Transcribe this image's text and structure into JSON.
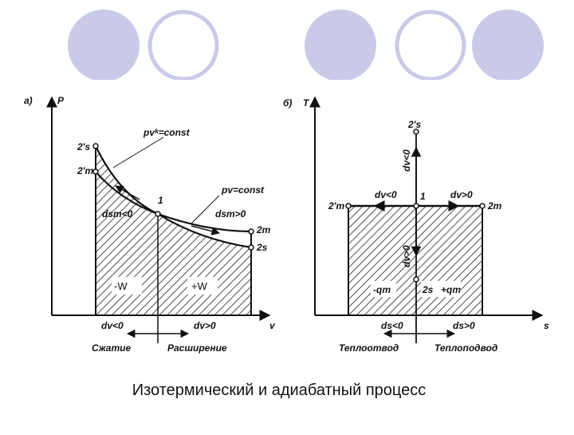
{
  "panel_a": {
    "label": "а)",
    "y_axis": "P",
    "x_axis": "v",
    "point_2s_prime": "2's",
    "point_2t_prime": "2'т",
    "adiabat": "pvᵏ=const",
    "point_1": "1",
    "isotherm": "pv=const",
    "ds_neg": "dsт<0",
    "ds_pos": "dsт>0",
    "point_2t": "2т",
    "point_2s": "2s",
    "work_neg": "-W",
    "work_pos": "+W",
    "dv_neg": "dv<0",
    "dv_pos": "dv>0",
    "compression": "Сжатие",
    "expansion": "Расширение"
  },
  "panel_b": {
    "label": "б)",
    "y_axis": "T",
    "x_axis": "s",
    "point_2s_prime": "2's",
    "dv_neg_vertical": "dv<0",
    "dv_neg": "dv<0",
    "point_1": "1",
    "dv_pos": "dv>0",
    "point_2t_prime": "2'т",
    "point_2t": "2т",
    "dv_pos_vertical": "dv>0",
    "heat_neg": "-qт",
    "point_2s": "2s",
    "heat_pos": "+qт",
    "ds_neg": "ds<0",
    "ds_pos": "ds>0",
    "heat_removal": "Теплоотвод",
    "heat_supply": "Теплоподвод"
  },
  "caption": "Изотермический и адиабатный процесс"
}
